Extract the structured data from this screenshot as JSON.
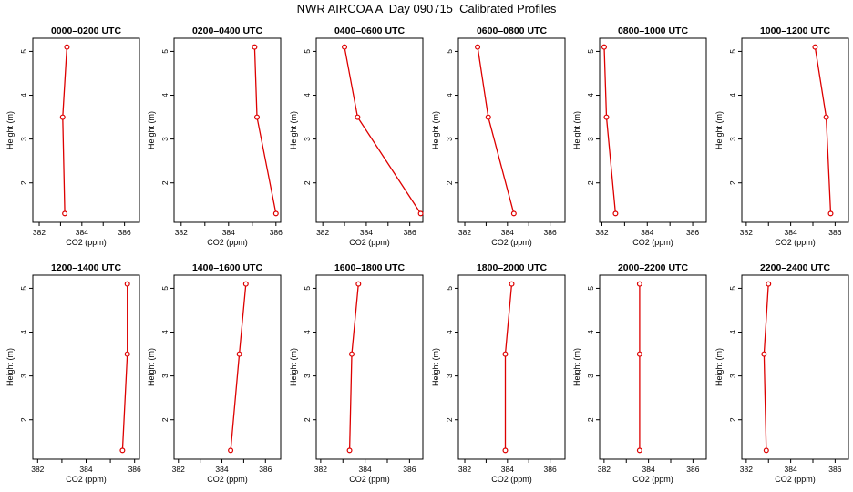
{
  "title": "NWR AIRCOA A  Day 090715  Calibrated Profiles",
  "colors": {
    "series": "#dd0000",
    "axis": "#000000",
    "background": "#ffffff"
  },
  "chart_data": [
    {
      "type": "line",
      "title": "0000–0200 UTC",
      "xlabel": "CO2 (ppm)",
      "ylabel": "Height (m)",
      "xlim": [
        381.7,
        386.7
      ],
      "ylim": [
        1.1,
        5.3
      ],
      "x_ticks": [
        "382",
        "384",
        "386"
      ],
      "y_ticks": [
        "2",
        "3",
        "4",
        "5"
      ],
      "points": [
        {
          "x": 383.2,
          "y": 1.3
        },
        {
          "x": 383.1,
          "y": 3.5
        },
        {
          "x": 383.3,
          "y": 5.1
        }
      ]
    },
    {
      "type": "line",
      "title": "0200–0400 UTC",
      "xlabel": "CO2 (ppm)",
      "ylabel": "Height (m)",
      "xlim": [
        381.7,
        386.2
      ],
      "ylim": [
        1.1,
        5.3
      ],
      "x_ticks": [
        "382",
        "384",
        "386"
      ],
      "y_ticks": [
        "2",
        "3",
        "4",
        "5"
      ],
      "points": [
        {
          "x": 386.0,
          "y": 1.3
        },
        {
          "x": 385.2,
          "y": 3.5
        },
        {
          "x": 385.1,
          "y": 5.1
        }
      ]
    },
    {
      "type": "line",
      "title": "0400–0600 UTC",
      "xlabel": "CO2 (ppm)",
      "ylabel": "Height (m)",
      "xlim": [
        381.7,
        386.6
      ],
      "ylim": [
        1.1,
        5.3
      ],
      "x_ticks": [
        "382",
        "384",
        "386"
      ],
      "y_ticks": [
        "2",
        "3",
        "4",
        "5"
      ],
      "points": [
        {
          "x": 386.5,
          "y": 1.3
        },
        {
          "x": 383.6,
          "y": 3.5
        },
        {
          "x": 383.0,
          "y": 5.1
        }
      ]
    },
    {
      "type": "line",
      "title": "0600–0800 UTC",
      "xlabel": "CO2 (ppm)",
      "ylabel": "Height (m)",
      "xlim": [
        381.7,
        386.7
      ],
      "ylim": [
        1.1,
        5.3
      ],
      "x_ticks": [
        "382",
        "384",
        "386"
      ],
      "y_ticks": [
        "2",
        "3",
        "4",
        "5"
      ],
      "points": [
        {
          "x": 384.3,
          "y": 1.3
        },
        {
          "x": 383.1,
          "y": 3.5
        },
        {
          "x": 382.6,
          "y": 5.1
        }
      ]
    },
    {
      "type": "line",
      "title": "0800–1000 UTC",
      "xlabel": "CO2 (ppm)",
      "ylabel": "Height (m)",
      "xlim": [
        381.9,
        386.6
      ],
      "ylim": [
        1.1,
        5.3
      ],
      "x_ticks": [
        "382",
        "384",
        "386"
      ],
      "y_ticks": [
        "2",
        "3",
        "4",
        "5"
      ],
      "points": [
        {
          "x": 382.6,
          "y": 1.3
        },
        {
          "x": 382.2,
          "y": 3.5
        },
        {
          "x": 382.1,
          "y": 5.1
        }
      ]
    },
    {
      "type": "line",
      "title": "1000–1200 UTC",
      "xlabel": "CO2 (ppm)",
      "ylabel": "Height (m)",
      "xlim": [
        381.8,
        386.6
      ],
      "ylim": [
        1.1,
        5.3
      ],
      "x_ticks": [
        "382",
        "384",
        "386"
      ],
      "y_ticks": [
        "2",
        "3",
        "4",
        "5"
      ],
      "points": [
        {
          "x": 385.8,
          "y": 1.3
        },
        {
          "x": 385.6,
          "y": 3.5
        },
        {
          "x": 385.1,
          "y": 5.1
        }
      ]
    },
    {
      "type": "line",
      "title": "1200–1400 UTC",
      "xlabel": "CO2 (ppm)",
      "ylabel": "Height (m)",
      "xlim": [
        381.8,
        386.2
      ],
      "ylim": [
        1.1,
        5.3
      ],
      "x_ticks": [
        "382",
        "384",
        "386"
      ],
      "y_ticks": [
        "2",
        "3",
        "4",
        "5"
      ],
      "points": [
        {
          "x": 385.5,
          "y": 1.3
        },
        {
          "x": 385.7,
          "y": 3.5
        },
        {
          "x": 385.7,
          "y": 5.1
        }
      ]
    },
    {
      "type": "line",
      "title": "1400–1600 UTC",
      "xlabel": "CO2 (ppm)",
      "ylabel": "Height (m)",
      "xlim": [
        381.8,
        386.7
      ],
      "ylim": [
        1.1,
        5.3
      ],
      "x_ticks": [
        "382",
        "384",
        "386"
      ],
      "y_ticks": [
        "2",
        "3",
        "4",
        "5"
      ],
      "points": [
        {
          "x": 384.4,
          "y": 1.3
        },
        {
          "x": 384.8,
          "y": 3.5
        },
        {
          "x": 385.1,
          "y": 5.1
        }
      ]
    },
    {
      "type": "line",
      "title": "1600–1800 UTC",
      "xlabel": "CO2 (ppm)",
      "ylabel": "Height (m)",
      "xlim": [
        381.8,
        386.6
      ],
      "ylim": [
        1.1,
        5.3
      ],
      "x_ticks": [
        "382",
        "384",
        "386"
      ],
      "y_ticks": [
        "2",
        "3",
        "4",
        "5"
      ],
      "points": [
        {
          "x": 383.3,
          "y": 1.3
        },
        {
          "x": 383.4,
          "y": 3.5
        },
        {
          "x": 383.7,
          "y": 5.1
        }
      ]
    },
    {
      "type": "line",
      "title": "1800–2000 UTC",
      "xlabel": "CO2 (ppm)",
      "ylabel": "Height (m)",
      "xlim": [
        381.7,
        386.7
      ],
      "ylim": [
        1.1,
        5.3
      ],
      "x_ticks": [
        "382",
        "384",
        "386"
      ],
      "y_ticks": [
        "2",
        "3",
        "4",
        "5"
      ],
      "points": [
        {
          "x": 383.9,
          "y": 1.3
        },
        {
          "x": 383.9,
          "y": 3.5
        },
        {
          "x": 384.2,
          "y": 5.1
        }
      ]
    },
    {
      "type": "line",
      "title": "2000–2200 UTC",
      "xlabel": "CO2 (ppm)",
      "ylabel": "Height (m)",
      "xlim": [
        381.8,
        386.6
      ],
      "ylim": [
        1.1,
        5.3
      ],
      "x_ticks": [
        "382",
        "384",
        "386"
      ],
      "y_ticks": [
        "2",
        "3",
        "4",
        "5"
      ],
      "points": [
        {
          "x": 383.6,
          "y": 1.3
        },
        {
          "x": 383.6,
          "y": 3.5
        },
        {
          "x": 383.6,
          "y": 5.1
        }
      ]
    },
    {
      "type": "line",
      "title": "2200–2400 UTC",
      "xlabel": "CO2 (ppm)",
      "ylabel": "Height (m)",
      "xlim": [
        381.8,
        386.6
      ],
      "ylim": [
        1.1,
        5.3
      ],
      "x_ticks": [
        "382",
        "384",
        "386"
      ],
      "y_ticks": [
        "2",
        "3",
        "4",
        "5"
      ],
      "points": [
        {
          "x": 382.9,
          "y": 1.3
        },
        {
          "x": 382.8,
          "y": 3.5
        },
        {
          "x": 383.0,
          "y": 5.1
        }
      ]
    }
  ]
}
